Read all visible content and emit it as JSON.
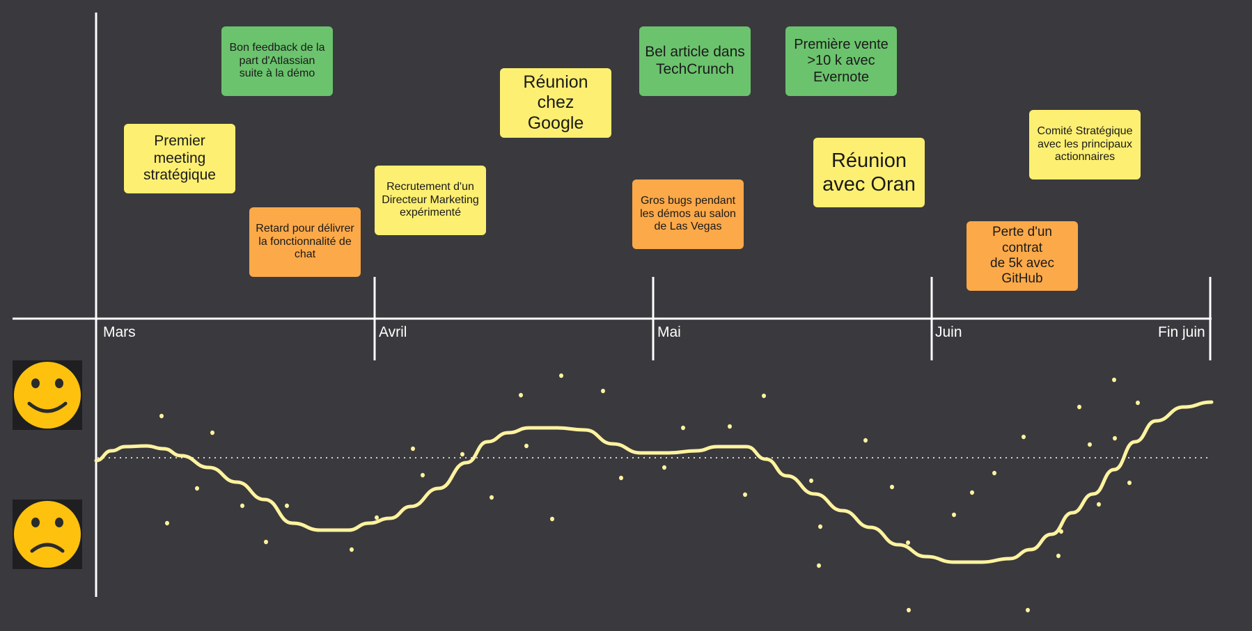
{
  "colors": {
    "background": "#3a3a3e",
    "axis": "#ffffff",
    "curve": "#fff3a0",
    "yellow_note": "#fdef72",
    "green_note": "#6cc36d",
    "orange_note": "#fca94a",
    "face": "#fdc10e"
  },
  "timeline": {
    "months": [
      "Mars",
      "Avril",
      "Mai",
      "Juin",
      "Fin juin"
    ]
  },
  "mood": {
    "happy_icon": "smiling-face-icon",
    "sad_icon": "frowning-face-icon"
  },
  "events": [
    {
      "id": "premier-meeting",
      "text": "Premier\nmeeting\nstratégique",
      "kind": "yellow"
    },
    {
      "id": "feedback-atlassian",
      "text": "Bon feedback de la\npart d'Atlassian\nsuite à la démo",
      "kind": "green"
    },
    {
      "id": "retard-chat",
      "text": "Retard pour délivrer\nla fonctionnalité de\nchat",
      "kind": "orange"
    },
    {
      "id": "recrutement-marketing",
      "text": "Recrutement d'un\nDirecteur Marketing\nexpérimenté",
      "kind": "yellow"
    },
    {
      "id": "reunion-google",
      "text": "Réunion chez\nGoogle",
      "kind": "yellow"
    },
    {
      "id": "article-techcrunch",
      "text": "Bel article dans\nTechCrunch",
      "kind": "green"
    },
    {
      "id": "bugs-las-vegas",
      "text": "Gros bugs pendant\nles démos au salon\nde Las Vegas",
      "kind": "orange"
    },
    {
      "id": "vente-evernote",
      "text": "Première vente\n>10 k avec\nEvernote",
      "kind": "green"
    },
    {
      "id": "reunion-oran",
      "text": "Réunion\navec Oran",
      "kind": "yellow"
    },
    {
      "id": "comite-strategique",
      "text": "Comité Stratégique\navec les principaux\nactionnaires",
      "kind": "yellow"
    },
    {
      "id": "perte-github",
      "text": "Perte d'un contrat\nde 5k avec\nGitHub",
      "kind": "orange"
    }
  ]
}
